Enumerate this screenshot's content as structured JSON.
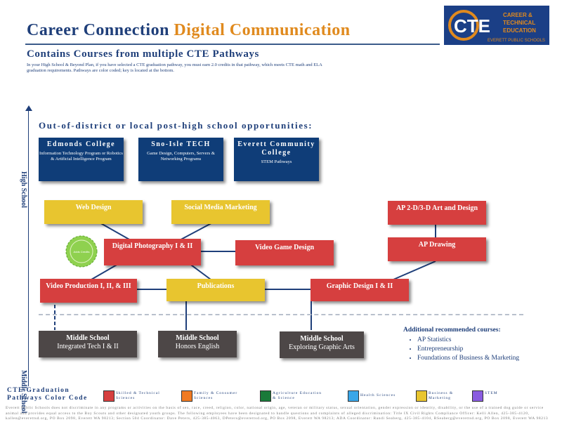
{
  "header": {
    "title_part1": "Career Connection",
    "title_part2": "Digital Communication",
    "subtitle": "Contains Courses from multiple CTE Pathways",
    "intro": "In your High School & Beyond Plan, if you have selected a CTE graduation pathway, you must earn 2.0 credits in that pathway, which meets CTE math and ELA graduation requirements. Pathways are color coded; key is located at the bottom.",
    "logo_line1": "CAREER &",
    "logo_line2": "TECHNICAL",
    "logo_line3": "EDUCATION",
    "logo_line4": "EVERETT PUBLIC SCHOOLS"
  },
  "axis": {
    "high_school": "High School",
    "middle_school": "Middle School"
  },
  "opportunities_heading": "Out-of-district or local post-high school opportunities:",
  "colleges": [
    {
      "name": "Edmonds College",
      "desc": "Information Technology Program or Robotics & Artificial Intelligence Program"
    },
    {
      "name": "Sno-Isle TECH",
      "desc": "Game Design, Computers, Servers & Networking Programs"
    },
    {
      "name": "Everett Community College",
      "desc": "STEM Pathways"
    }
  ],
  "courses": {
    "web_design": "Web Design",
    "social_media": "Social Media Marketing",
    "digital_photo": "Digital Photography I & II",
    "video_game": "Video Game Design",
    "video_production": "Video Production I, II, & III",
    "publications": "Publications",
    "graphic_design": "Graphic Design I & II",
    "ap_2d3d": "AP 2-D/3-D Art and Design",
    "ap_drawing": "AP Drawing"
  },
  "badge": {
    "text": "Adds Credits"
  },
  "middle_school": [
    {
      "label": "Middle School",
      "course": "Integrated Tech I & II"
    },
    {
      "label": "Middle School",
      "course": "Honors English"
    },
    {
      "label": "Middle School",
      "course": "Exploring Graphic Arts"
    }
  ],
  "additional": {
    "title": "Additional recommended courses:",
    "items": [
      "AP Statistics",
      "Entrepreneurship",
      "Foundations of Business & Marketing"
    ]
  },
  "key": {
    "title_line1": "CTE Graduation",
    "title_line2": "Pathways Color Code",
    "items": [
      {
        "label": "Skilled & Technical Sciences",
        "color": "#d63f3f"
      },
      {
        "label": "Family & Consumer Sciences",
        "color": "#f07a22"
      },
      {
        "label": "Agriculture Education & Science",
        "color": "#1a7a3a"
      },
      {
        "label": "Health Sciences",
        "color": "#3aa6e8"
      },
      {
        "label": "Business & Marketing",
        "color": "#e8c52f"
      },
      {
        "label": "STEM",
        "color": "#8a5ce0"
      }
    ]
  },
  "footer": "Everett Public Schools does not discriminate in any programs or activities on the basis of sex, race, creed, religion, color, national origin, age, veteran or military status, sexual orientation, gender expression or identity, disability, or the use of a trained dog guide or service animal and provides equal access to the Boy Scouts and other designated youth groups. The following employees have been designated to handle questions and complaints of alleged discrimination: Title IX Civil Rights Compliance Officer: Kelli Allen, 425-385-4120, kallen@everettsd.org, PO Box 2098, Everett WA 98213; Section 504 Coordinator: Dave Peters, 425-385-4063, DPeters@everettsd.org, PO Box 2098, Everett WA 98213; ADA Coordinator: Randi Seaberg, 425-385-4104, RSeaberg@everettsd.org, PO Box 2098, Everett WA 98213"
}
